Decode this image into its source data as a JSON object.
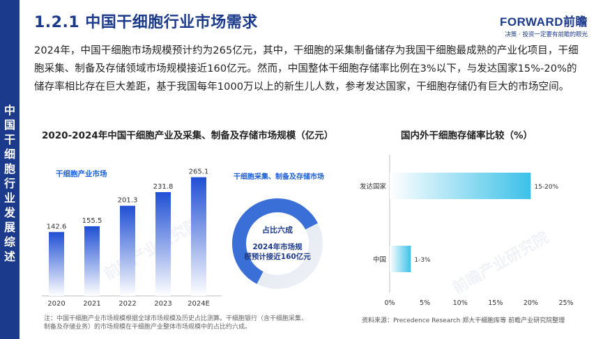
{
  "sidebar": {
    "label": "中国干细胞行业发展综述"
  },
  "header": {
    "title": "1.2.1 中国干细胞行业市场需求"
  },
  "logo": {
    "brand": "FORWARD前瞻",
    "tagline": "决策 · 投资一定要有前瞻的眼光"
  },
  "body_text": "2024年，中国干细胞市场规模预计约为265亿元，其中，干细胞的采集制备储存为我国干细胞最成熟的产业化项目，干细胞采集、制备及存储领域市场规模接近160亿元。然而，中国整体干细胞存储率比例在3%以下，与发达国家15%-20%的储存率相比存在巨大差距，基于我国每年1000万以上的新生儿人数，参考发达国家，干细胞存储仍有巨大的市场空间。",
  "colors": {
    "accent": "#1c3a8c",
    "bar_top": "#1f4fd4",
    "donut_dark": "#3b6fd8",
    "donut_light": "#dde3ee",
    "hbar": "#3cc1e8"
  },
  "chart_data": [
    {
      "type": "bar",
      "title": "2020-2024年中国干细胞产业及采集、制备及存储市场规模（亿元）",
      "legend": "干细胞产业市场",
      "categories": [
        "2020",
        "2021",
        "2022",
        "2023",
        "2024E"
      ],
      "values": [
        142.6,
        155.5,
        201.3,
        231.8,
        265.1
      ],
      "value_labels": [
        "142.6",
        "155.5",
        "201.3",
        "231.8",
        "265.1"
      ],
      "ylim": [
        0,
        280
      ]
    },
    {
      "type": "pie",
      "title": "干细胞采集、制备及存储市场",
      "share": 0.6,
      "center_label": "占比六成",
      "center_text": "2024年市场规模预计接近160亿元"
    },
    {
      "type": "bar",
      "orientation": "horizontal",
      "title": "国内外干细胞存储率比较（%）",
      "categories": [
        "发达国家",
        "中国"
      ],
      "values": [
        20,
        3
      ],
      "range_from": [
        0,
        0
      ],
      "value_labels": [
        "15-20%",
        "1-3%"
      ],
      "xlim": [
        0,
        25
      ],
      "x_ticks": [
        "0%",
        "5%",
        "10%",
        "15%",
        "20%",
        "25%"
      ]
    }
  ],
  "footer": {
    "note": "注：中国干细胞产业市场规模根据全球市场规模及历史占比测算。干细胞银行（含干细胞采集、制备及存储业务）的市场规模在干细胞产业整体市场规模中的占比约六成。",
    "source": "资料来源：Precedence Research 郑大干细胞库等 前瞻产业研究院整理"
  }
}
